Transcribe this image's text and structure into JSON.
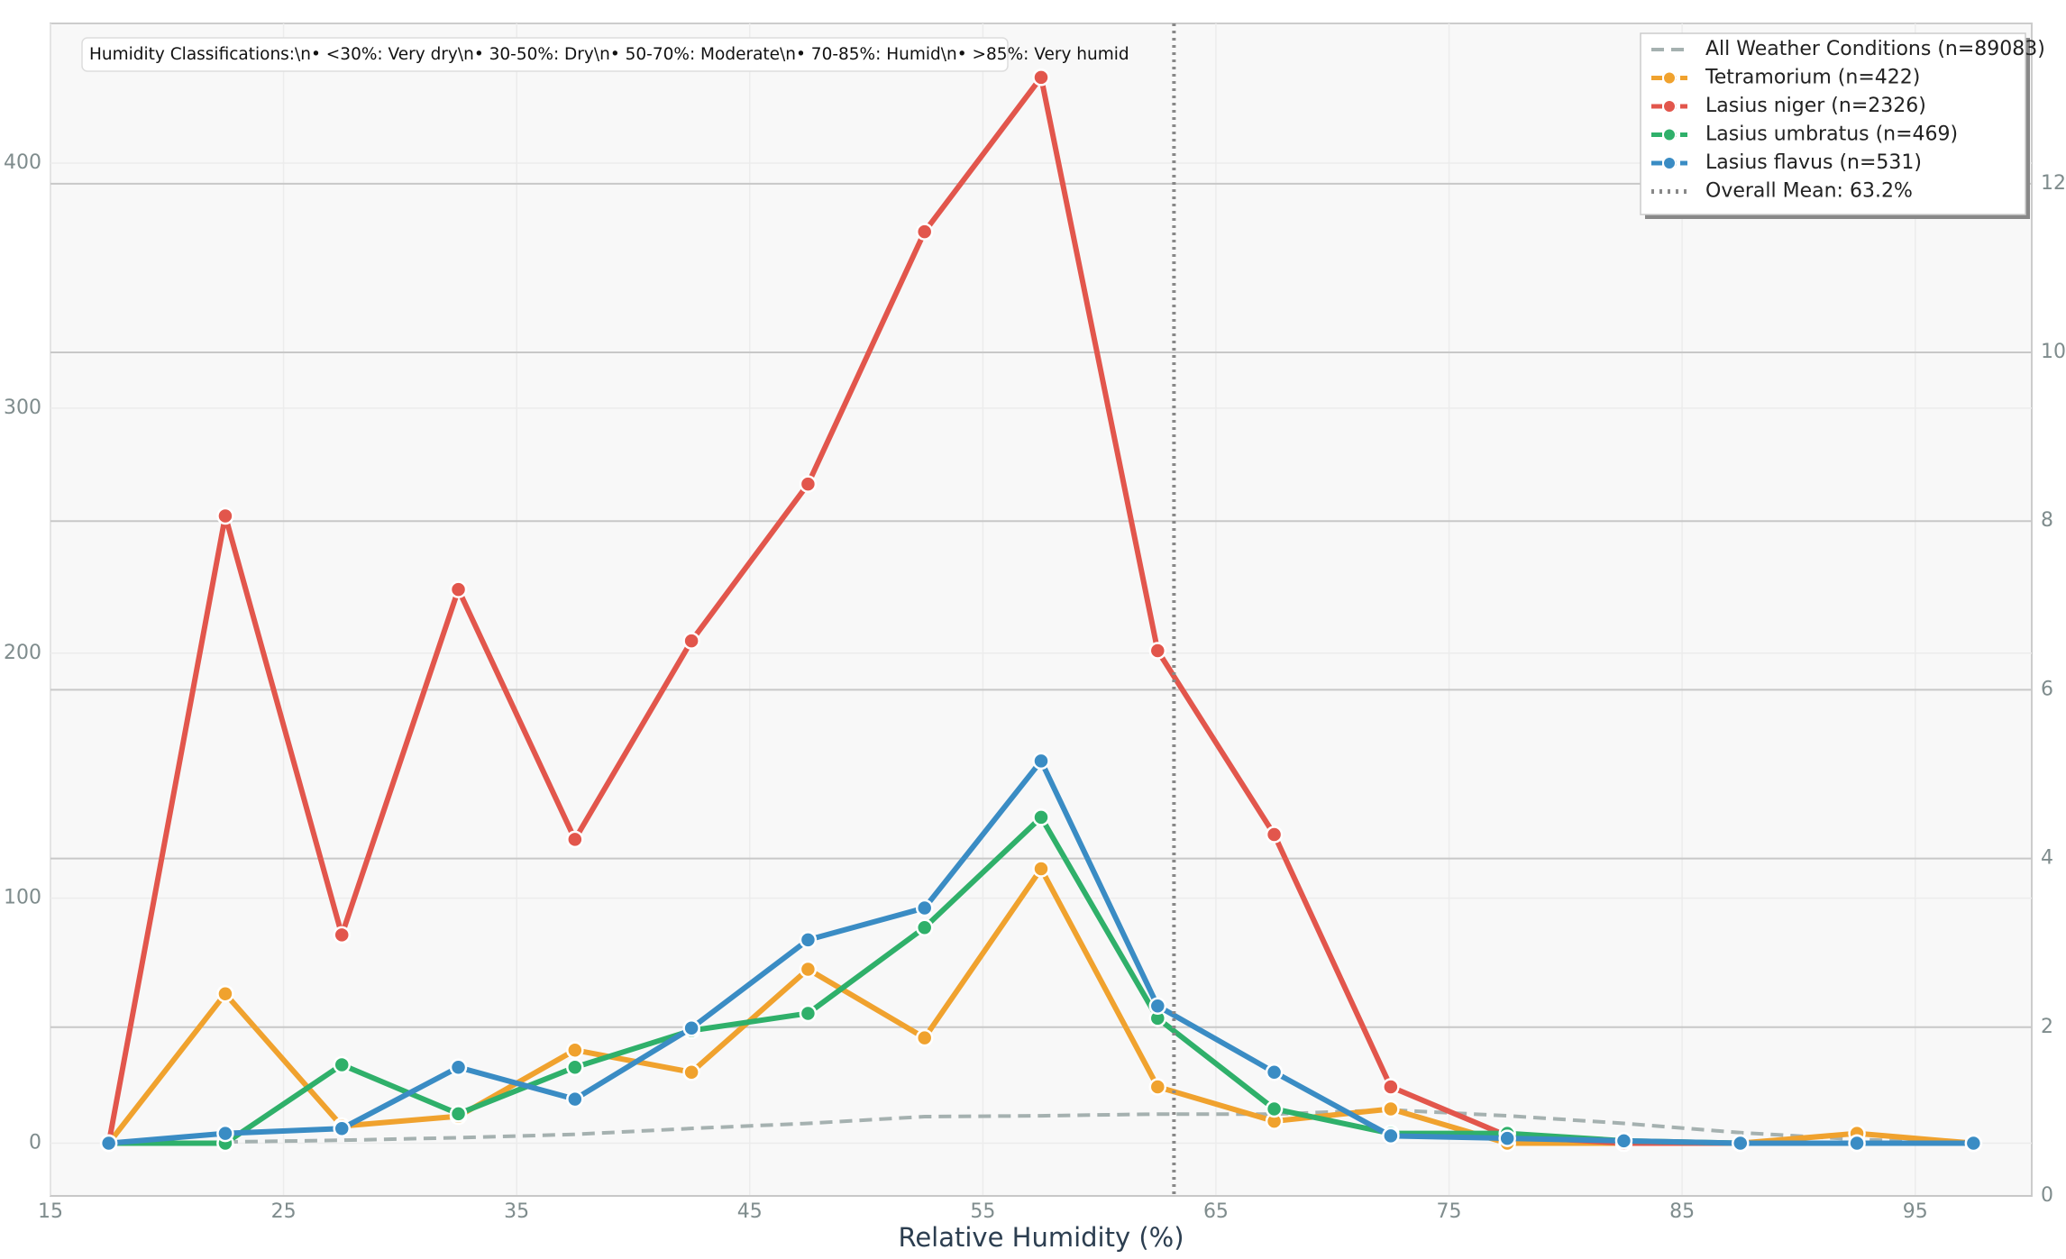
{
  "chart_data": {
    "type": "line",
    "xlabel": "Relative Humidity (%)",
    "annotation": "Humidity Classifications:\\n• <30%: Very dry\\n• 30-50%: Dry\\n• 50-70%: Moderate\\n• 70-85%: Humid\\n• >85%: Very humid",
    "x": [
      17.5,
      22.5,
      27.5,
      32.5,
      37.5,
      42.5,
      47.5,
      52.5,
      57.5,
      62.5,
      67.5,
      72.5,
      77.5,
      82.5,
      87.5,
      92.5,
      97.5
    ],
    "series": [
      {
        "name": "All Weather Conditions (n=89083)",
        "color": "#a5b1b0",
        "axis": "y2",
        "style": "dashed",
        "values": [
          null,
          0.64,
          0.66,
          0.69,
          0.73,
          0.8,
          0.86,
          0.94,
          0.95,
          0.97,
          0.97,
          1.02,
          0.95,
          0.86,
          0.75,
          0.67,
          0.62
        ]
      },
      {
        "name": "Tetramorium (n=422)",
        "color": "#f0a22e",
        "style": "solid",
        "values": [
          0,
          61,
          7,
          11,
          38,
          29,
          71,
          43,
          112,
          23,
          9,
          14,
          0,
          0,
          0,
          4,
          0
        ]
      },
      {
        "name": "Lasius niger (n=2326)",
        "color": "#e2564c",
        "style": "solid",
        "values": [
          0,
          256,
          85,
          226,
          124,
          205,
          269,
          372,
          435,
          201,
          126,
          23,
          3,
          0,
          0,
          0,
          0
        ]
      },
      {
        "name": "Lasius umbratus (n=469)",
        "color": "#2fb06a",
        "style": "solid",
        "values": [
          0,
          0,
          32,
          12,
          31,
          46,
          53,
          88,
          133,
          51,
          14,
          4,
          4,
          1,
          0,
          0,
          0
        ]
      },
      {
        "name": "Lasius flavus (n=531)",
        "color": "#3a8cc4",
        "style": "solid",
        "values": [
          0,
          4,
          6,
          31,
          18,
          47,
          83,
          96,
          156,
          56,
          29,
          3,
          2,
          1,
          0,
          0,
          0
        ]
      }
    ],
    "mean": {
      "name": "Overall Mean: 63.2%",
      "value": 63.2,
      "color": "#888888"
    },
    "xlim": [
      15,
      100
    ],
    "xticks": [
      15,
      25,
      35,
      45,
      55,
      65,
      75,
      85,
      95
    ],
    "ylim": [
      -21.5,
      457
    ],
    "yticks": [
      0,
      100,
      200,
      300,
      400
    ],
    "y2lim": [
      0,
      13.9
    ],
    "y2ticks": [
      0,
      2,
      4,
      6,
      8,
      10,
      12
    ],
    "grid": true,
    "legend": "upper right"
  }
}
